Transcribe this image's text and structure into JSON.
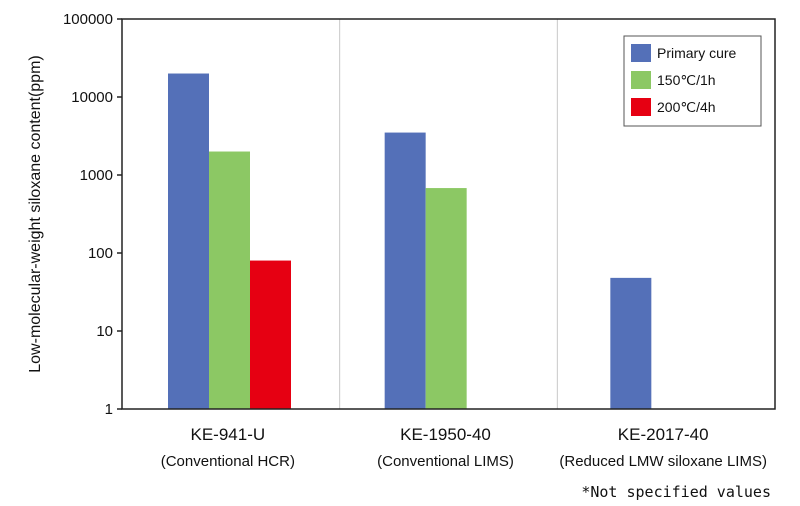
{
  "chart_data": {
    "type": "bar",
    "title": "",
    "xlabel": "",
    "ylabel": "Low-molecular-weight siloxane content(ppm)",
    "yscale": "log",
    "ylim": [
      1,
      100000
    ],
    "yticks": [
      1,
      10,
      100,
      1000,
      10000,
      100000
    ],
    "ytick_labels": [
      "1",
      "10",
      "100",
      "1000",
      "10000",
      "100000"
    ],
    "grid": "vertical separators between categories",
    "categories": [
      {
        "name": "KE-941-U",
        "sub": "(Conventional HCR)"
      },
      {
        "name": "KE-1950-40",
        "sub": "(Conventional LIMS)"
      },
      {
        "name": "KE-2017-40",
        "sub": "(Reduced LMW siloxane LIMS)"
      }
    ],
    "series": [
      {
        "name": "Primary cure",
        "color": "#5470b8",
        "values": [
          20000,
          3500,
          48
        ]
      },
      {
        "name": "150℃/1h",
        "color": "#8cc864",
        "values": [
          2000,
          680,
          null
        ]
      },
      {
        "name": "200℃/4h",
        "color": "#e60012",
        "values": [
          80,
          null,
          null
        ]
      }
    ],
    "legend_position": "top-right",
    "footnote": "*Not specified values"
  }
}
